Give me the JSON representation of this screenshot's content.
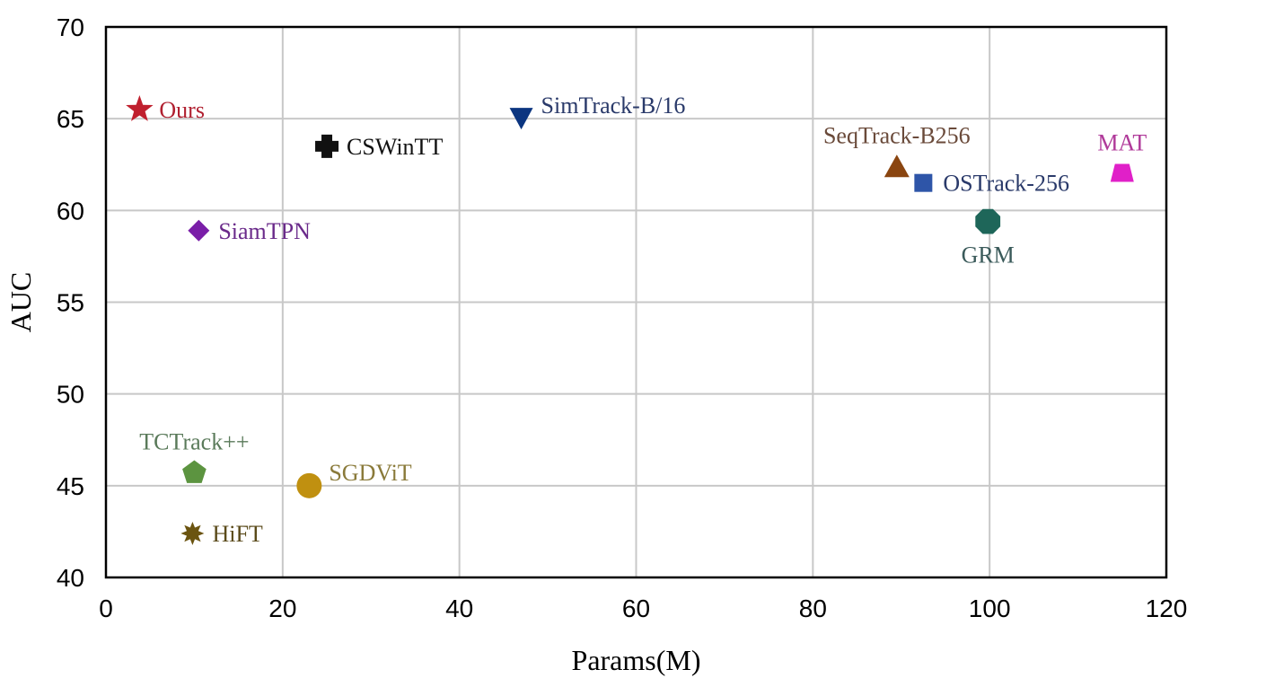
{
  "chart_data": {
    "type": "scatter",
    "title": "",
    "xlabel": "Params(M)",
    "ylabel": "AUC",
    "xlim": [
      0,
      120
    ],
    "ylim": [
      40,
      70
    ],
    "xticks": [
      0,
      20,
      40,
      60,
      80,
      100,
      120
    ],
    "yticks": [
      40,
      45,
      50,
      55,
      60,
      65,
      70
    ],
    "grid": true,
    "points": [
      {
        "label": "Ours",
        "x": 3.8,
        "y": 65.5,
        "marker": "star",
        "color": "#c0202e",
        "label_pos": "right"
      },
      {
        "label": "CSWinTT",
        "x": 25.0,
        "y": 63.5,
        "marker": "cross",
        "color": "#111111",
        "label_pos": "right"
      },
      {
        "label": "SimTrack-B/16",
        "x": 47.0,
        "y": 65.0,
        "marker": "triangle-down",
        "color": "#0b3580",
        "label_pos": "right-up"
      },
      {
        "label": "SeqTrack-B256",
        "x": 89.5,
        "y": 62.4,
        "marker": "triangle-up",
        "color": "#8a4510",
        "label_pos": "above"
      },
      {
        "label": "OSTrack-256",
        "x": 92.5,
        "y": 61.5,
        "marker": "square",
        "color": "#2e55a8",
        "label_pos": "right"
      },
      {
        "label": "MAT",
        "x": 115.0,
        "y": 62.0,
        "marker": "trapezoid",
        "color": "#e020c8",
        "label_pos": "above"
      },
      {
        "label": "GRM",
        "x": 99.8,
        "y": 59.4,
        "marker": "octagon",
        "color": "#1e6659",
        "label_pos": "below"
      },
      {
        "label": "SiamTPN",
        "x": 10.5,
        "y": 58.9,
        "marker": "diamond",
        "color": "#7a1ea8",
        "label_pos": "right"
      },
      {
        "label": "TCTrack++",
        "x": 10.0,
        "y": 45.7,
        "marker": "pentagon",
        "color": "#5c9440",
        "label_pos": "above"
      },
      {
        "label": "SGDViT",
        "x": 23.0,
        "y": 45.0,
        "marker": "circle",
        "color": "#c09010",
        "label_pos": "right-up"
      },
      {
        "label": "HiFT",
        "x": 9.8,
        "y": 42.4,
        "marker": "star8",
        "color": "#6b5410",
        "label_pos": "right"
      }
    ],
    "label_colors": {
      "Ours": "#b02030",
      "CSWinTT": "#111111",
      "SimTrack-B/16": "#2a3a6a",
      "SeqTrack-B256": "#6a4a3a",
      "OSTrack-256": "#2a3a6a",
      "MAT": "#b03a9a",
      "GRM": "#3a5a5a",
      "SiamTPN": "#6a2a8a",
      "TCTrack++": "#5a7a5a",
      "SGDViT": "#8a7a3a",
      "HiFT": "#5a4a1a"
    }
  }
}
